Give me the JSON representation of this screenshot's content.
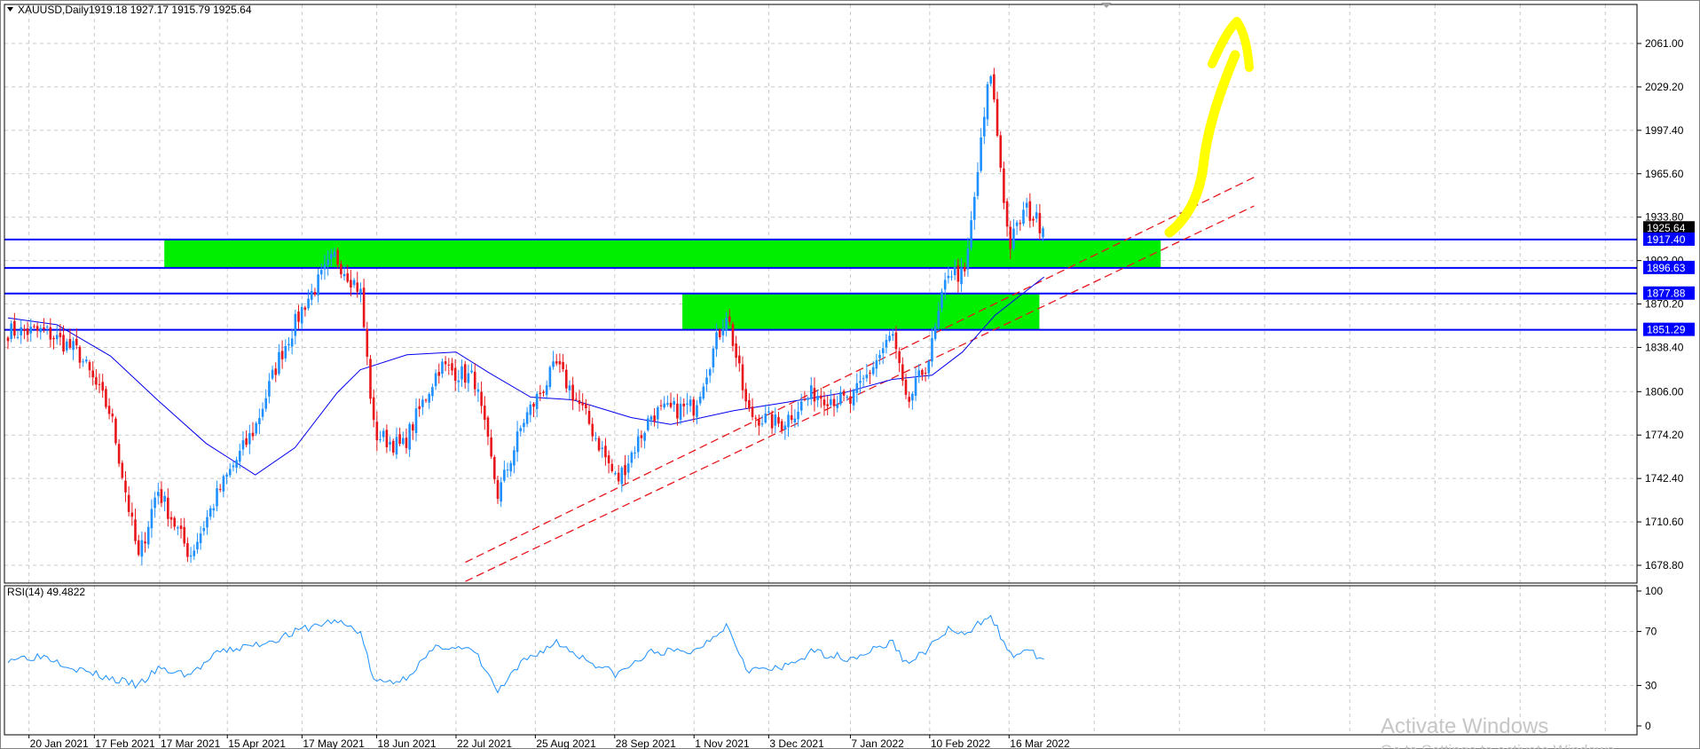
{
  "header": {
    "symbol": "XAUUSD,Daily",
    "ohlc": "1919.18 1927.17 1915.79 1925.64"
  },
  "rsi_label": "RSI(14) 49.4822",
  "watermark": {
    "line1": "Activate Windows",
    "line2": "Go to Settings to activate Windows."
  },
  "colors": {
    "bull": "#1e90ff",
    "bear": "#e8161b",
    "zone": "#00ee00",
    "level": "#0000ff",
    "ma": "#0000ee",
    "rsi": "#1e90ff",
    "trend": "#e8161b",
    "arrow": "#ffff00",
    "price_tag": "#000000"
  },
  "chart_data": [
    {
      "type": "candlestick",
      "symbol": "XAUUSD",
      "timeframe": "Daily",
      "ylim": [
        1665,
        2085
      ],
      "y_ticks": [
        2061.0,
        2029.2,
        1997.4,
        1965.6,
        1933.8,
        1902.0,
        1870.2,
        1838.4,
        1806.0,
        1774.2,
        1742.4,
        1710.6,
        1678.8
      ],
      "x_ticks": [
        "20 Jan 2021",
        "17 Feb 2021",
        "17 Mar 2021",
        "15 Apr 2021",
        "17 May 2021",
        "18 Jun 2021",
        "22 Jul 2021",
        "25 Aug 2021",
        "28 Sep 2021",
        "1 Nov 2021",
        "3 Dec 2021",
        "7 Jan 2022",
        "10 Feb 2022",
        "16 Mar 2022"
      ],
      "price_tags": [
        {
          "value": 1925.64,
          "style": "current"
        },
        {
          "value": 1917.4,
          "style": "level"
        },
        {
          "value": 1896.63,
          "style": "level"
        },
        {
          "value": 1877.88,
          "style": "level"
        },
        {
          "value": 1851.29,
          "style": "level"
        }
      ],
      "zones": [
        {
          "from": "2021-03-19",
          "to": "2022-05-20",
          "low": 1896.63,
          "high": 1917.4
        },
        {
          "from": "2021-10-27",
          "to": "2022-03-29",
          "low": 1851.29,
          "high": 1877.88
        }
      ],
      "trendlines": [
        {
          "from": [
            "2021-07-26",
            1681
          ],
          "to": [
            "2022-06-29",
            1963
          ]
        },
        {
          "from": [
            "2021-07-26",
            1667
          ],
          "to": [
            "2022-06-29",
            1942
          ]
        }
      ],
      "anchors": [
        {
          "date": "2021-01-11",
          "price": 1850
        },
        {
          "date": "2021-01-27",
          "price": 1850
        },
        {
          "date": "2021-02-10",
          "price": 1835
        },
        {
          "date": "2021-02-24",
          "price": 1790
        },
        {
          "date": "2021-03-08",
          "price": 1683
        },
        {
          "date": "2021-03-16",
          "price": 1735
        },
        {
          "date": "2021-03-30",
          "price": 1686
        },
        {
          "date": "2021-04-12",
          "price": 1735
        },
        {
          "date": "2021-04-27",
          "price": 1780
        },
        {
          "date": "2021-05-07",
          "price": 1830
        },
        {
          "date": "2021-05-18",
          "price": 1870
        },
        {
          "date": "2021-05-31",
          "price": 1905
        },
        {
          "date": "2021-06-11",
          "price": 1880
        },
        {
          "date": "2021-06-17",
          "price": 1775
        },
        {
          "date": "2021-06-29",
          "price": 1765
        },
        {
          "date": "2021-07-15",
          "price": 1825
        },
        {
          "date": "2021-07-30",
          "price": 1815
        },
        {
          "date": "2021-08-09",
          "price": 1730
        },
        {
          "date": "2021-08-20",
          "price": 1785
        },
        {
          "date": "2021-09-03",
          "price": 1825
        },
        {
          "date": "2021-09-15",
          "price": 1790
        },
        {
          "date": "2021-09-29",
          "price": 1740
        },
        {
          "date": "2021-10-14",
          "price": 1790
        },
        {
          "date": "2021-11-01",
          "price": 1795
        },
        {
          "date": "2021-11-15",
          "price": 1865
        },
        {
          "date": "2021-11-24",
          "price": 1790
        },
        {
          "date": "2021-12-08",
          "price": 1782
        },
        {
          "date": "2021-12-22",
          "price": 1805
        },
        {
          "date": "2022-01-07",
          "price": 1798
        },
        {
          "date": "2022-01-25",
          "price": 1848
        },
        {
          "date": "2022-01-31",
          "price": 1795
        },
        {
          "date": "2022-02-10",
          "price": 1832
        },
        {
          "date": "2022-02-18",
          "price": 1895
        },
        {
          "date": "2022-02-25",
          "price": 1890
        },
        {
          "date": "2022-03-08",
          "price": 2043
        },
        {
          "date": "2022-03-16",
          "price": 1912
        },
        {
          "date": "2022-03-23",
          "price": 1940
        },
        {
          "date": "2022-03-31",
          "price": 1925.64
        }
      ],
      "ma_points": [
        {
          "date": "2021-01-11",
          "price": 1860
        },
        {
          "date": "2021-02-01",
          "price": 1855
        },
        {
          "date": "2021-02-24",
          "price": 1832
        },
        {
          "date": "2021-03-16",
          "price": 1800
        },
        {
          "date": "2021-04-06",
          "price": 1768
        },
        {
          "date": "2021-04-27",
          "price": 1745
        },
        {
          "date": "2021-05-14",
          "price": 1765
        },
        {
          "date": "2021-06-01",
          "price": 1805
        },
        {
          "date": "2021-06-11",
          "price": 1822
        },
        {
          "date": "2021-07-01",
          "price": 1833
        },
        {
          "date": "2021-07-22",
          "price": 1835
        },
        {
          "date": "2021-08-05",
          "price": 1820
        },
        {
          "date": "2021-08-23",
          "price": 1802
        },
        {
          "date": "2021-09-10",
          "price": 1800
        },
        {
          "date": "2021-10-05",
          "price": 1787
        },
        {
          "date": "2021-10-22",
          "price": 1782
        },
        {
          "date": "2021-11-18",
          "price": 1792
        },
        {
          "date": "2021-12-10",
          "price": 1798
        },
        {
          "date": "2022-01-04",
          "price": 1805
        },
        {
          "date": "2022-01-25",
          "price": 1815
        },
        {
          "date": "2022-02-11",
          "price": 1818
        },
        {
          "date": "2022-02-24",
          "price": 1835
        },
        {
          "date": "2022-03-10",
          "price": 1862
        },
        {
          "date": "2022-03-31",
          "price": 1890
        }
      ]
    },
    {
      "type": "line",
      "name": "RSI(14)",
      "ylim": [
        0,
        100
      ],
      "y_ticks": [
        100,
        70,
        30,
        0
      ],
      "last_value": 49.4822,
      "points": [
        {
          "date": "2021-01-11",
          "value": 50
        },
        {
          "date": "2021-01-27",
          "value": 52
        },
        {
          "date": "2021-02-10",
          "value": 42
        },
        {
          "date": "2021-02-24",
          "value": 35
        },
        {
          "date": "2021-03-08",
          "value": 30
        },
        {
          "date": "2021-03-16",
          "value": 42
        },
        {
          "date": "2021-03-30",
          "value": 38
        },
        {
          "date": "2021-04-12",
          "value": 55
        },
        {
          "date": "2021-04-27",
          "value": 60
        },
        {
          "date": "2021-05-07",
          "value": 65
        },
        {
          "date": "2021-05-18",
          "value": 72
        },
        {
          "date": "2021-05-31",
          "value": 78
        },
        {
          "date": "2021-06-11",
          "value": 70
        },
        {
          "date": "2021-06-17",
          "value": 32
        },
        {
          "date": "2021-06-29",
          "value": 34
        },
        {
          "date": "2021-07-15",
          "value": 60
        },
        {
          "date": "2021-07-30",
          "value": 55
        },
        {
          "date": "2021-08-09",
          "value": 25
        },
        {
          "date": "2021-08-20",
          "value": 48
        },
        {
          "date": "2021-09-03",
          "value": 62
        },
        {
          "date": "2021-09-15",
          "value": 50
        },
        {
          "date": "2021-09-29",
          "value": 38
        },
        {
          "date": "2021-10-14",
          "value": 55
        },
        {
          "date": "2021-11-01",
          "value": 55
        },
        {
          "date": "2021-11-15",
          "value": 75
        },
        {
          "date": "2021-11-24",
          "value": 42
        },
        {
          "date": "2021-12-08",
          "value": 42
        },
        {
          "date": "2021-12-22",
          "value": 55
        },
        {
          "date": "2022-01-07",
          "value": 50
        },
        {
          "date": "2022-01-25",
          "value": 62
        },
        {
          "date": "2022-01-31",
          "value": 46
        },
        {
          "date": "2022-02-10",
          "value": 58
        },
        {
          "date": "2022-02-18",
          "value": 72
        },
        {
          "date": "2022-02-25",
          "value": 66
        },
        {
          "date": "2022-03-08",
          "value": 84
        },
        {
          "date": "2022-03-16",
          "value": 52
        },
        {
          "date": "2022-03-23",
          "value": 56
        },
        {
          "date": "2022-03-31",
          "value": 49.4822
        }
      ]
    }
  ]
}
